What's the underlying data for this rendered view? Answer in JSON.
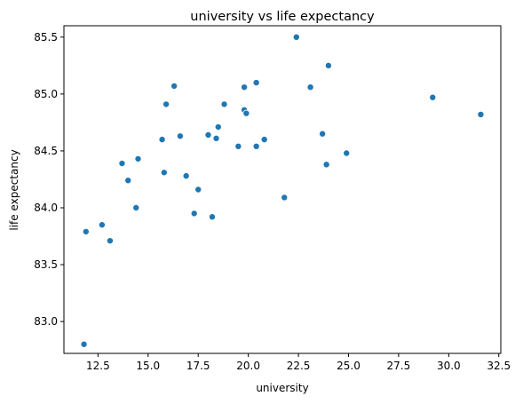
{
  "chart_data": {
    "type": "scatter",
    "title": "university vs life expectancy",
    "xlabel": "university",
    "ylabel": "life expectancy",
    "xlim": [
      10.8,
      32.6
    ],
    "ylim": [
      82.72,
      85.6
    ],
    "xticks": [
      "12.5",
      "15.0",
      "17.5",
      "20.0",
      "22.5",
      "25.0",
      "27.5",
      "30.0",
      "32.5"
    ],
    "yticks": [
      "83.0",
      "83.5",
      "84.0",
      "84.5",
      "85.0",
      "85.5"
    ],
    "grid": false,
    "color": "#1f77b4",
    "points": [
      {
        "x": 11.8,
        "y": 82.8
      },
      {
        "x": 11.9,
        "y": 83.79
      },
      {
        "x": 12.7,
        "y": 83.85
      },
      {
        "x": 13.1,
        "y": 83.71
      },
      {
        "x": 13.7,
        "y": 84.39
      },
      {
        "x": 14.0,
        "y": 84.24
      },
      {
        "x": 14.4,
        "y": 84.0
      },
      {
        "x": 14.5,
        "y": 84.43
      },
      {
        "x": 15.7,
        "y": 84.6
      },
      {
        "x": 15.8,
        "y": 84.31
      },
      {
        "x": 15.9,
        "y": 84.91
      },
      {
        "x": 16.3,
        "y": 85.07
      },
      {
        "x": 16.6,
        "y": 84.63
      },
      {
        "x": 16.9,
        "y": 84.28
      },
      {
        "x": 17.3,
        "y": 83.95
      },
      {
        "x": 17.5,
        "y": 84.16
      },
      {
        "x": 18.0,
        "y": 84.64
      },
      {
        "x": 18.2,
        "y": 83.92
      },
      {
        "x": 18.4,
        "y": 84.61
      },
      {
        "x": 18.5,
        "y": 84.71
      },
      {
        "x": 18.8,
        "y": 84.91
      },
      {
        "x": 19.5,
        "y": 84.54
      },
      {
        "x": 19.8,
        "y": 85.06
      },
      {
        "x": 19.8,
        "y": 84.86
      },
      {
        "x": 19.9,
        "y": 84.83
      },
      {
        "x": 20.4,
        "y": 85.1
      },
      {
        "x": 20.4,
        "y": 84.54
      },
      {
        "x": 20.8,
        "y": 84.6
      },
      {
        "x": 21.8,
        "y": 84.09
      },
      {
        "x": 22.4,
        "y": 85.5
      },
      {
        "x": 23.1,
        "y": 85.06
      },
      {
        "x": 23.7,
        "y": 84.65
      },
      {
        "x": 23.9,
        "y": 84.38
      },
      {
        "x": 24.0,
        "y": 85.25
      },
      {
        "x": 24.9,
        "y": 84.48
      },
      {
        "x": 29.2,
        "y": 84.97
      },
      {
        "x": 31.6,
        "y": 84.82
      }
    ]
  }
}
